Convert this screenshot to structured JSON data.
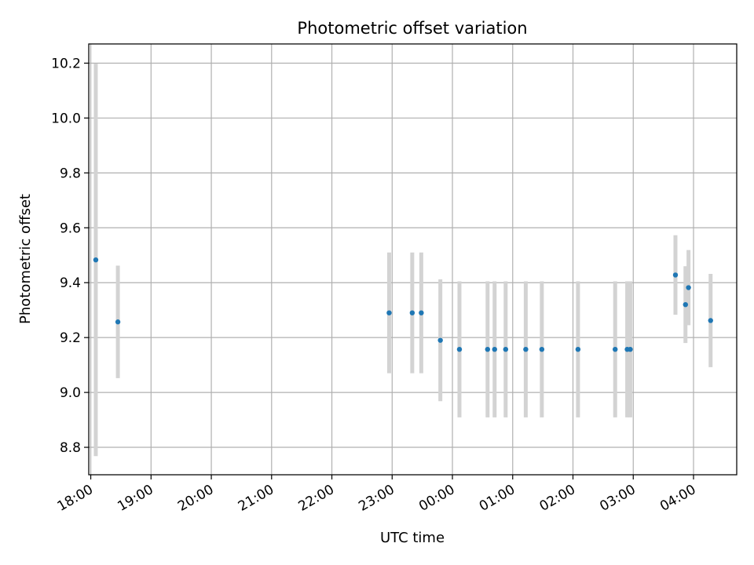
{
  "chart_data": {
    "type": "scatter",
    "title": "Photometric offset variation",
    "xlabel": "UTC time",
    "ylabel": "Photometric offset",
    "x_tick_labels": [
      "18:00",
      "19:00",
      "20:00",
      "21:00",
      "22:00",
      "23:00",
      "00:00",
      "01:00",
      "02:00",
      "03:00",
      "04:00"
    ],
    "y_ticks": [
      "8.8",
      "9.0",
      "9.2",
      "9.4",
      "9.6",
      "9.8",
      "10.0",
      "10.2"
    ],
    "xlim": [
      "17:58",
      "04:43"
    ],
    "ylim": [
      8.7,
      10.27
    ],
    "grid": true,
    "colors": {
      "marker": "#1f77b4",
      "errorbar": "#d3d3d3",
      "grid": "#b0b0b0"
    },
    "points": [
      {
        "x": "18:05",
        "y": 9.483,
        "err": 0.715
      },
      {
        "x": "18:27",
        "y": 9.257,
        "err": 0.205
      },
      {
        "x": "22:57",
        "y": 9.29,
        "err": 0.22
      },
      {
        "x": "23:20",
        "y": 9.29,
        "err": 0.22
      },
      {
        "x": "23:29",
        "y": 9.29,
        "err": 0.22
      },
      {
        "x": "23:48",
        "y": 9.19,
        "err": 0.222
      },
      {
        "x": "00:07",
        "y": 9.157,
        "err": 0.248
      },
      {
        "x": "00:35",
        "y": 9.157,
        "err": 0.248
      },
      {
        "x": "00:42",
        "y": 9.157,
        "err": 0.248
      },
      {
        "x": "00:53",
        "y": 9.157,
        "err": 0.248
      },
      {
        "x": "01:13",
        "y": 9.157,
        "err": 0.248
      },
      {
        "x": "01:29",
        "y": 9.157,
        "err": 0.248
      },
      {
        "x": "02:05",
        "y": 9.157,
        "err": 0.248
      },
      {
        "x": "02:42",
        "y": 9.157,
        "err": 0.248
      },
      {
        "x": "02:54",
        "y": 9.157,
        "err": 0.248
      },
      {
        "x": "02:57",
        "y": 9.157,
        "err": 0.248
      },
      {
        "x": "03:42",
        "y": 9.428,
        "err": 0.145
      },
      {
        "x": "03:52",
        "y": 9.32,
        "err": 0.14
      },
      {
        "x": "03:55",
        "y": 9.382,
        "err": 0.137
      },
      {
        "x": "04:17",
        "y": 9.262,
        "err": 0.17
      }
    ]
  }
}
